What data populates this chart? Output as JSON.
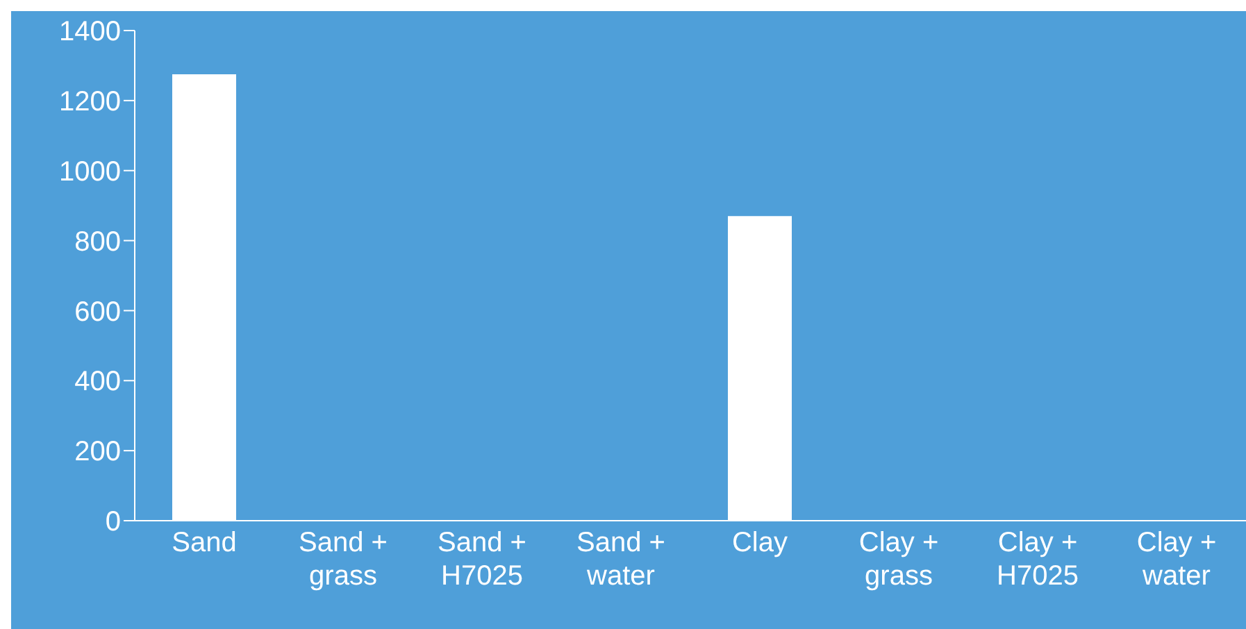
{
  "chart_data": {
    "type": "bar",
    "categories": [
      "Sand",
      "Sand + grass",
      "Sand + H7025",
      "Sand + water",
      "Clay",
      "Clay + grass",
      "Clay + H7025",
      "Clay + water"
    ],
    "values": [
      1275,
      0,
      0,
      0,
      870,
      0,
      0,
      0
    ],
    "color": "#ffffff",
    "ylim": [
      0,
      1400
    ],
    "yticks": [
      0,
      200,
      400,
      600,
      800,
      1000,
      1200,
      1400
    ],
    "grid": false,
    "legend": false
  }
}
